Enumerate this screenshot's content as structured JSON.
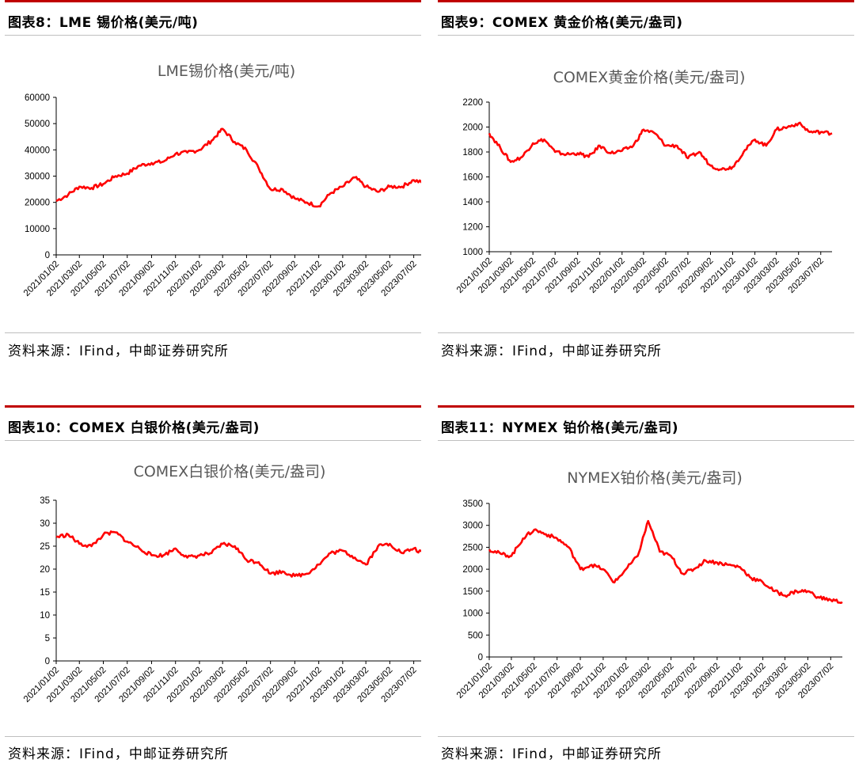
{
  "accent_color": "#c00000",
  "line_color": "#ff0000",
  "panels": [
    {
      "heading": "图表8：LME 锡价格(美元/吨)",
      "source": "资料来源：IFind，中邮证券研究所",
      "chart_data": {
        "type": "line",
        "title": "LME锡价格(美元/吨)",
        "ylim": [
          0,
          60000
        ],
        "yticks": [
          0,
          10000,
          20000,
          30000,
          40000,
          50000,
          60000
        ],
        "x_tick_labels": [
          "2021/01/02",
          "2021/03/02",
          "2021/05/02",
          "2021/07/02",
          "2021/09/02",
          "2021/11/02",
          "2022/01/02",
          "2022/03/02",
          "2022/05/02",
          "2022/07/02",
          "2022/09/02",
          "2022/11/02",
          "2023/01/02",
          "2023/03/02",
          "2023/05/02",
          "2023/07/02"
        ],
        "series": [
          {
            "points": [
              [
                "2021/01/02",
                20500
              ],
              [
                "2021/02/02",
                23000
              ],
              [
                "2021/03/02",
                26000
              ],
              [
                "2021/04/02",
                25500
              ],
              [
                "2021/05/02",
                27000
              ],
              [
                "2021/06/02",
                30000
              ],
              [
                "2021/07/02",
                31000
              ],
              [
                "2021/08/02",
                34000
              ],
              [
                "2021/09/02",
                35000
              ],
              [
                "2021/10/02",
                35500
              ],
              [
                "2021/11/02",
                38500
              ],
              [
                "2021/12/02",
                39000
              ],
              [
                "2022/01/02",
                40000
              ],
              [
                "2022/02/02",
                43500
              ],
              [
                "2022/03/02",
                48000
              ],
              [
                "2022/04/02",
                43000
              ],
              [
                "2022/05/02",
                40000
              ],
              [
                "2022/06/02",
                33000
              ],
              [
                "2022/07/02",
                25000
              ],
              [
                "2022/08/02",
                25000
              ],
              [
                "2022/09/02",
                21500
              ],
              [
                "2022/10/02",
                20000
              ],
              [
                "2022/11/02",
                18500
              ],
              [
                "2022/12/02",
                23500
              ],
              [
                "2023/01/02",
                26000
              ],
              [
                "2023/02/02",
                29500
              ],
              [
                "2023/03/02",
                26000
              ],
              [
                "2023/04/02",
                24000
              ],
              [
                "2023/05/02",
                26000
              ],
              [
                "2023/06/02",
                26000
              ],
              [
                "2023/07/02",
                28500
              ],
              [
                "2023/08/02",
                27000
              ]
            ]
          }
        ]
      }
    },
    {
      "heading": "图表9：COMEX 黄金价格(美元/盎司)",
      "source": "资料来源：IFind，中邮证券研究所",
      "chart_data": {
        "type": "line",
        "title": "COMEX黄金价格(美元/盎司)",
        "ylim": [
          1000,
          2200
        ],
        "yticks": [
          1000,
          1200,
          1400,
          1600,
          1800,
          2000,
          2200
        ],
        "x_tick_labels": [
          "2021/01/02",
          "2021/03/02",
          "2021/05/02",
          "2021/07/02",
          "2021/09/02",
          "2021/11/02",
          "2022/01/02",
          "2022/03/02",
          "2022/05/02",
          "2022/07/02",
          "2022/09/02",
          "2022/11/02",
          "2023/01/02",
          "2023/03/02",
          "2023/05/02",
          "2023/07/02"
        ],
        "series": [
          {
            "points": [
              [
                "2021/01/02",
                1950
              ],
              [
                "2021/02/02",
                1830
              ],
              [
                "2021/03/02",
                1720
              ],
              [
                "2021/04/02",
                1760
              ],
              [
                "2021/05/02",
                1870
              ],
              [
                "2021/06/02",
                1900
              ],
              [
                "2021/07/02",
                1800
              ],
              [
                "2021/08/02",
                1780
              ],
              [
                "2021/09/02",
                1790
              ],
              [
                "2021/10/02",
                1760
              ],
              [
                "2021/11/02",
                1850
              ],
              [
                "2021/12/02",
                1790
              ],
              [
                "2022/01/02",
                1810
              ],
              [
                "2022/02/02",
                1850
              ],
              [
                "2022/03/02",
                1980
              ],
              [
                "2022/04/02",
                1950
              ],
              [
                "2022/05/02",
                1850
              ],
              [
                "2022/06/02",
                1850
              ],
              [
                "2022/07/02",
                1750
              ],
              [
                "2022/08/02",
                1800
              ],
              [
                "2022/09/02",
                1690
              ],
              [
                "2022/10/02",
                1660
              ],
              [
                "2022/11/02",
                1680
              ],
              [
                "2022/12/02",
                1800
              ],
              [
                "2023/01/02",
                1900
              ],
              [
                "2023/02/02",
                1850
              ],
              [
                "2023/03/02",
                1980
              ],
              [
                "2023/04/02",
                2000
              ],
              [
                "2023/05/02",
                2030
              ],
              [
                "2023/06/02",
                1960
              ],
              [
                "2023/07/02",
                1960
              ],
              [
                "2023/08/02",
                1950
              ]
            ]
          }
        ]
      }
    },
    {
      "heading": "图表10：COMEX 白银价格(美元/盎司)",
      "source": "资料来源：IFind，中邮证券研究所",
      "chart_data": {
        "type": "line",
        "title": "COMEX白银价格(美元/盎司)",
        "ylim": [
          0,
          35
        ],
        "yticks": [
          0,
          5,
          10,
          15,
          20,
          25,
          30,
          35
        ],
        "x_tick_labels": [
          "2021/01/02",
          "2021/03/02",
          "2021/05/02",
          "2021/07/02",
          "2021/09/02",
          "2021/11/02",
          "2022/01/02",
          "2022/03/02",
          "2022/05/02",
          "2022/07/02",
          "2022/09/02",
          "2022/11/02",
          "2023/01/02",
          "2023/03/02",
          "2023/05/02",
          "2023/07/02"
        ],
        "series": [
          {
            "points": [
              [
                "2021/01/02",
                27
              ],
              [
                "2021/02/02",
                27.5
              ],
              [
                "2021/03/02",
                25.5
              ],
              [
                "2021/04/02",
                25
              ],
              [
                "2021/05/02",
                27.5
              ],
              [
                "2021/06/02",
                28
              ],
              [
                "2021/07/02",
                26
              ],
              [
                "2021/08/02",
                24.5
              ],
              [
                "2021/09/02",
                23
              ],
              [
                "2021/10/02",
                23
              ],
              [
                "2021/11/02",
                24.5
              ],
              [
                "2021/12/02",
                22.5
              ],
              [
                "2022/01/02",
                23
              ],
              [
                "2022/02/02",
                23.5
              ],
              [
                "2022/03/02",
                25.5
              ],
              [
                "2022/04/02",
                25
              ],
              [
                "2022/05/02",
                22
              ],
              [
                "2022/06/02",
                21.5
              ],
              [
                "2022/07/02",
                19
              ],
              [
                "2022/08/02",
                19.5
              ],
              [
                "2022/09/02",
                18.5
              ],
              [
                "2022/10/02",
                19
              ],
              [
                "2022/11/02",
                21
              ],
              [
                "2022/12/02",
                23.5
              ],
              [
                "2023/01/02",
                24
              ],
              [
                "2023/02/02",
                22.5
              ],
              [
                "2023/03/02",
                21
              ],
              [
                "2023/04/02",
                25
              ],
              [
                "2023/05/02",
                25.5
              ],
              [
                "2023/06/02",
                23.5
              ],
              [
                "2023/07/02",
                24.5
              ],
              [
                "2023/08/02",
                23
              ]
            ]
          }
        ]
      }
    },
    {
      "heading": "图表11：NYMEX 铂价格(美元/盎司)",
      "source": "资料来源：IFind，中邮证券研究所",
      "chart_data": {
        "type": "line",
        "title": "NYMEX铂价格(美元/盎司)",
        "ylim": [
          0,
          3500
        ],
        "yticks": [
          0,
          500,
          1000,
          1500,
          2000,
          2500,
          3000,
          3500
        ],
        "x_tick_labels": [
          "2021/01/02",
          "2021/03/02",
          "2021/05/02",
          "2021/07/02",
          "2021/09/02",
          "2021/11/02",
          "2022/01/02",
          "2022/03/02",
          "2022/05/02",
          "2022/07/02",
          "2022/09/02",
          "2022/11/02",
          "2023/01/02",
          "2023/03/02",
          "2023/05/02",
          "2023/07/02"
        ],
        "series": [
          {
            "points": [
              [
                "2021/01/02",
                2450
              ],
              [
                "2021/02/02",
                2350
              ],
              [
                "2021/03/02",
                2300
              ],
              [
                "2021/04/02",
                2700
              ],
              [
                "2021/05/02",
                2900
              ],
              [
                "2021/06/02",
                2800
              ],
              [
                "2021/07/02",
                2700
              ],
              [
                "2021/08/02",
                2500
              ],
              [
                "2021/09/02",
                2000
              ],
              [
                "2021/10/02",
                2100
              ],
              [
                "2021/11/02",
                2000
              ],
              [
                "2021/12/02",
                1700
              ],
              [
                "2022/01/02",
                2000
              ],
              [
                "2022/02/02",
                2300
              ],
              [
                "2022/03/02",
                3100
              ],
              [
                "2022/04/02",
                2400
              ],
              [
                "2022/05/02",
                2300
              ],
              [
                "2022/06/02",
                1900
              ],
              [
                "2022/07/02",
                2000
              ],
              [
                "2022/08/02",
                2200
              ],
              [
                "2022/09/02",
                2150
              ],
              [
                "2022/10/02",
                2100
              ],
              [
                "2022/11/02",
                2050
              ],
              [
                "2022/12/02",
                1800
              ],
              [
                "2023/01/02",
                1700
              ],
              [
                "2023/02/02",
                1500
              ],
              [
                "2023/03/02",
                1400
              ],
              [
                "2023/04/02",
                1500
              ],
              [
                "2023/05/02",
                1500
              ],
              [
                "2023/06/02",
                1350
              ],
              [
                "2023/07/02",
                1300
              ],
              [
                "2023/08/02",
                1250
              ]
            ]
          }
        ]
      }
    }
  ]
}
